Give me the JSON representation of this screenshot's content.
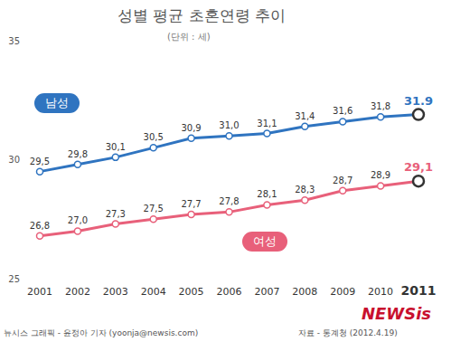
{
  "chart_data": {
    "type": "line",
    "title": "성별 평균 초혼연령 추이",
    "subtitle": "(단위 : 세)",
    "categories": [
      "2001",
      "2002",
      "2003",
      "2004",
      "2005",
      "2006",
      "2007",
      "2008",
      "2009",
      "2010",
      "2011"
    ],
    "series": [
      {
        "name": "남성",
        "color": "#2f74c0",
        "values": [
          29.5,
          29.8,
          30.1,
          30.5,
          30.9,
          31.0,
          31.1,
          31.4,
          31.6,
          31.8,
          31.9
        ],
        "value_labels": [
          "29,5",
          "29,8",
          "30,1",
          "30,5",
          "30,9",
          "31,0",
          "31,1",
          "31,4",
          "31,6",
          "31,8",
          "31.9"
        ]
      },
      {
        "name": "여성",
        "color": "#e8607a",
        "values": [
          26.8,
          27.0,
          27.3,
          27.5,
          27.7,
          27.8,
          28.1,
          28.3,
          28.7,
          28.9,
          29.1
        ],
        "value_labels": [
          "26,8",
          "27,0",
          "27,3",
          "27,5",
          "27,7",
          "27,8",
          "28,1",
          "28,3",
          "28,7",
          "28,9",
          "29,1"
        ]
      }
    ],
    "ylim": [
      25,
      35
    ],
    "yticks": [
      25,
      30,
      35
    ],
    "grid": false,
    "data_labels": true,
    "marker": "circle",
    "credit": "뉴시스 그래픽 - 윤정아 기자 (yoonja@newsis.com)",
    "source": "자료 - 통계청 (2012.4.19)",
    "logo": "NEWSis"
  }
}
